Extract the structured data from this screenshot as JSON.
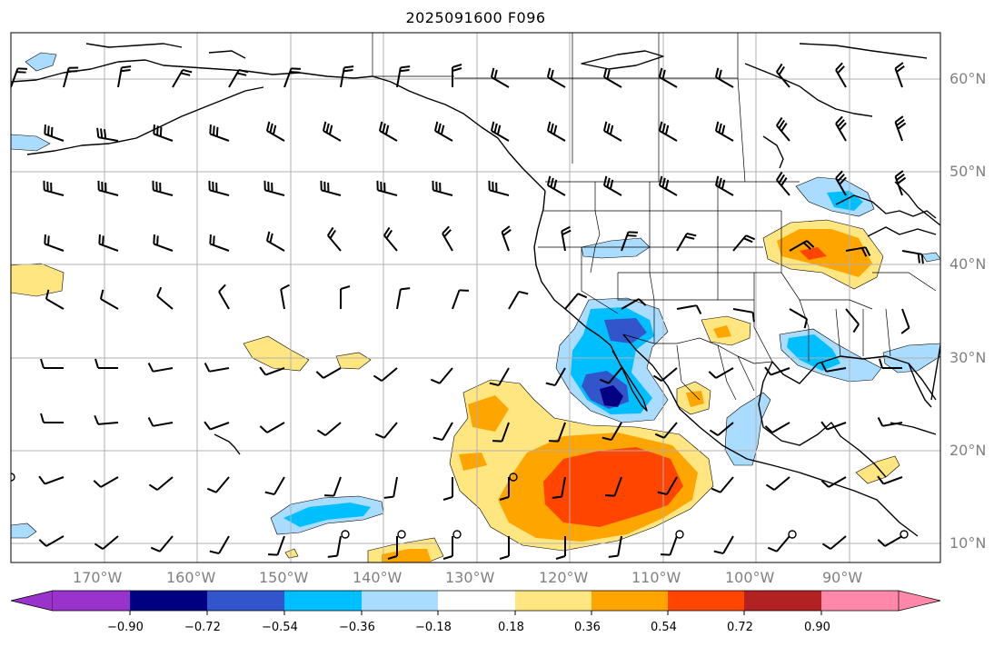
{
  "title": "2025091600 F096",
  "longitude_labels": [
    "170°W",
    "160°W",
    "150°W",
    "140°W",
    "130°W",
    "120°W",
    "110°W",
    "100°W",
    "90°W"
  ],
  "latitude_labels": [
    "60°N",
    "50°N",
    "40°N",
    "30°N",
    "20°N",
    "10°N"
  ],
  "colorbar": {
    "tick_labels": [
      "−0.90",
      "−0.72",
      "−0.54",
      "−0.36",
      "−0.18",
      "0.18",
      "0.36",
      "0.54",
      "0.72",
      "0.90"
    ],
    "colors": [
      "#9933cc",
      "#000080",
      "#3355cc",
      "#00bfff",
      "#aadcff",
      "#ffffff",
      "#ffe680",
      "#ffa500",
      "#ff4500",
      "#b22222",
      "#ff88aa"
    ]
  },
  "fill_colors": {
    "neg_018": "#aadcff",
    "neg_036": "#00bfff",
    "neg_054": "#3355cc",
    "neg_072": "#000080",
    "pos_018": "#ffe680",
    "pos_036": "#ffa500",
    "pos_054": "#ff4500"
  }
}
